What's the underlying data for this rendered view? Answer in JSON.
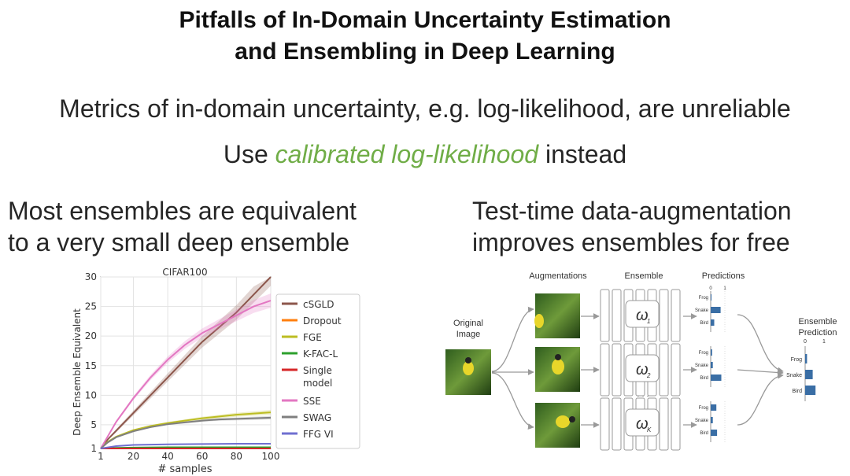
{
  "title_lines": [
    "Pitfalls of In-Domain Uncertainty Estimation",
    "and Ensembling in Deep Learning"
  ],
  "claim1": "Metrics of in-domain uncertainty, e.g. log-likelihood, are unreliable",
  "claim2": {
    "prefix": "Use ",
    "highlight": "calibrated log-likelihood",
    "suffix": " instead",
    "highlight_color": "#70ad47"
  },
  "left_heading": [
    "Most ensembles are equivalent",
    "to a very small deep ensemble"
  ],
  "right_heading": [
    "Test-time data-augmentation",
    "improves ensembles for free"
  ],
  "chart_data": {
    "type": "line",
    "title": "CIFAR100",
    "xlabel": "# samples",
    "ylabel": "Deep Ensemble Equivalent",
    "xlim": [
      1,
      100
    ],
    "ylim": [
      1,
      30
    ],
    "xticks": [
      1,
      20,
      40,
      60,
      80,
      100
    ],
    "yticks": [
      1,
      5,
      10,
      15,
      20,
      25,
      30
    ],
    "grid": true,
    "legend_position": "right",
    "series": [
      {
        "name": "cSGLD",
        "color": "#8c564b",
        "x": [
          1,
          5,
          10,
          20,
          30,
          40,
          50,
          60,
          70,
          80,
          90,
          100
        ],
        "y": [
          1,
          2.5,
          4,
          7,
          10,
          13,
          16,
          19,
          21.5,
          24,
          27,
          30
        ],
        "band": 1.5
      },
      {
        "name": "Dropout",
        "color": "#ff7f0e",
        "x": [
          1,
          10,
          20,
          40,
          60,
          80,
          100
        ],
        "y": [
          1,
          1.05,
          1.08,
          1.1,
          1.1,
          1.1,
          1.1
        ],
        "band": 0.05
      },
      {
        "name": "FGE",
        "color": "#bcbd22",
        "x": [
          1,
          5,
          10,
          20,
          30,
          40,
          50,
          60,
          70,
          80,
          90,
          100
        ],
        "y": [
          1,
          2.1,
          3,
          4.1,
          4.8,
          5.3,
          5.7,
          6.1,
          6.4,
          6.7,
          6.9,
          7.1
        ],
        "band": 0.4
      },
      {
        "name": "K-FAC-L",
        "color": "#2ca02c",
        "x": [
          1,
          10,
          20,
          40,
          60,
          80,
          100
        ],
        "y": [
          1,
          1.1,
          1.15,
          1.2,
          1.2,
          1.2,
          1.2
        ],
        "band": 0.05
      },
      {
        "name": "Single model",
        "color": "#d62728",
        "x": [
          1,
          10,
          20,
          40,
          60,
          80,
          100
        ],
        "y": [
          1,
          1,
          1,
          1,
          1,
          1,
          1
        ],
        "band": 0.03
      },
      {
        "name": "SSE",
        "color": "#e377c2",
        "x": [
          1,
          5,
          10,
          20,
          30,
          40,
          50,
          60,
          70,
          80,
          90,
          100
        ],
        "y": [
          1,
          3,
          5.5,
          9.5,
          13,
          16,
          18.5,
          20.5,
          22,
          23.5,
          25,
          26
        ],
        "band": 1.2
      },
      {
        "name": "SWAG",
        "color": "#7f7f7f",
        "x": [
          1,
          5,
          10,
          20,
          30,
          40,
          50,
          60,
          70,
          80,
          90,
          100
        ],
        "y": [
          1,
          2,
          2.9,
          3.9,
          4.6,
          5.1,
          5.4,
          5.7,
          5.9,
          6,
          6.1,
          6.2
        ],
        "band": 0.3
      },
      {
        "name": "FFG VI",
        "color": "#6f6fd0",
        "x": [
          1,
          10,
          20,
          40,
          60,
          80,
          100
        ],
        "y": [
          1,
          1.4,
          1.6,
          1.7,
          1.75,
          1.8,
          1.8
        ],
        "band": 0.08
      }
    ]
  },
  "diagram": {
    "labels": {
      "augmentations": "Augmentations",
      "ensemble": "Ensemble",
      "predictions": "Predictions",
      "original": [
        "Original",
        "Image"
      ],
      "ensemble_prediction": [
        "Ensemble",
        "Prediction"
      ],
      "dots": "· · ·"
    },
    "omegas": [
      "ω",
      "ω",
      "ω"
    ],
    "omega_subs": [
      "1",
      "2",
      "K"
    ],
    "classes": [
      "Frog",
      "Snake",
      "Bird"
    ],
    "axis_ticks": [
      "0",
      "1"
    ],
    "bar_color": "#3a6ea5",
    "predictions": [
      [
        0.05,
        0.7,
        0.25
      ],
      [
        0.1,
        0.15,
        0.75
      ],
      [
        0.4,
        0.15,
        0.45
      ]
    ],
    "ensemble_prediction_values": [
      0.1,
      0.4,
      0.55
    ]
  }
}
